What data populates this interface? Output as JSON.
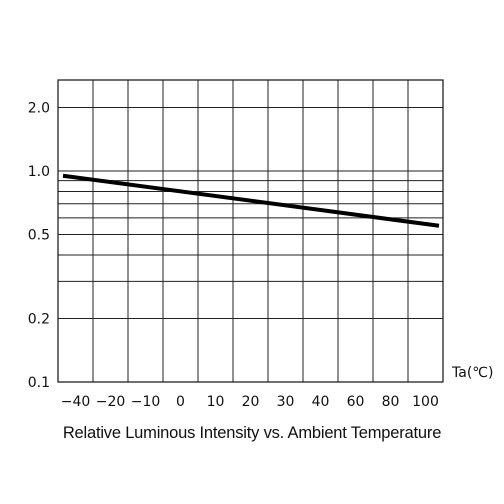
{
  "chart_data": {
    "type": "line",
    "caption": "Relative Luminous Intensity vs. Ambient Temperature",
    "x_unit_label": "Ta(℃)",
    "x_ticks": [
      "-40",
      "-20",
      "-10",
      "0",
      "10",
      "20",
      "30",
      "40",
      "60",
      "80",
      "100"
    ],
    "y_scale": "log",
    "y_ticks": [
      {
        "value": 0.1,
        "label": "0.1"
      },
      {
        "value": 0.2,
        "label": "0.2"
      },
      {
        "value": 0.5,
        "label": "0.5"
      },
      {
        "value": 1.0,
        "label": "1.0"
      },
      {
        "value": 2.0,
        "label": "2.0"
      }
    ],
    "y_gridlines": [
      0.1,
      0.2,
      0.3,
      0.4,
      0.5,
      0.6,
      0.7,
      0.8,
      0.9,
      1.0,
      2.0
    ],
    "ylim": [
      0.1,
      2.0
    ],
    "series": [
      {
        "x": [
          "-40",
          "100"
        ],
        "y": [
          0.95,
          0.55
        ]
      }
    ],
    "grid": true,
    "line_color": "#000000"
  }
}
